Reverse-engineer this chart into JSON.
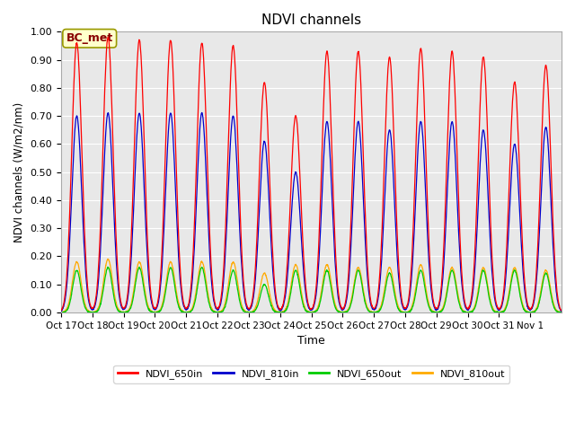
{
  "title": "NDVI channels",
  "xlabel": "Time",
  "ylabel": "NDVI channels (W/m2/nm)",
  "ylim": [
    0.0,
    1.0
  ],
  "bg_color": "#e8e8e8",
  "annotation_text": "BC_met",
  "annotation_bg": "#ffffcc",
  "annotation_border": "#999900",
  "series": {
    "NDVI_650in": {
      "color": "#ff0000",
      "zorder": 4
    },
    "NDVI_810in": {
      "color": "#0000cc",
      "zorder": 3
    },
    "NDVI_650out": {
      "color": "#00cc00",
      "zorder": 2
    },
    "NDVI_810out": {
      "color": "#ffaa00",
      "zorder": 1
    }
  },
  "xtick_labels": [
    "Oct 17",
    "Oct 18",
    "Oct 19",
    "Oct 20",
    "Oct 21",
    "Oct 22",
    "Oct 23",
    "Oct 24",
    "Oct 25",
    "Oct 26",
    "Oct 27",
    "Oct 28",
    "Oct 29",
    "Oct 30",
    "Oct 31",
    "Nov 1"
  ],
  "xtick_positions": [
    0,
    1,
    2,
    3,
    4,
    5,
    6,
    7,
    8,
    9,
    10,
    11,
    12,
    13,
    14,
    15
  ],
  "peaks_650in": [
    0.96,
    0.98,
    0.97,
    0.97,
    0.96,
    0.95,
    0.82,
    0.7,
    0.93,
    0.93,
    0.91,
    0.94,
    0.93,
    0.91,
    0.82,
    0.88
  ],
  "peaks_810in": [
    0.7,
    0.71,
    0.71,
    0.71,
    0.71,
    0.7,
    0.61,
    0.5,
    0.68,
    0.68,
    0.65,
    0.68,
    0.68,
    0.65,
    0.6,
    0.66
  ],
  "peaks_650out": [
    0.15,
    0.16,
    0.16,
    0.16,
    0.16,
    0.15,
    0.1,
    0.15,
    0.15,
    0.15,
    0.14,
    0.15,
    0.15,
    0.15,
    0.15,
    0.14
  ],
  "peaks_810out": [
    0.18,
    0.19,
    0.18,
    0.18,
    0.18,
    0.18,
    0.14,
    0.17,
    0.17,
    0.16,
    0.16,
    0.17,
    0.16,
    0.16,
    0.16,
    0.15
  ]
}
